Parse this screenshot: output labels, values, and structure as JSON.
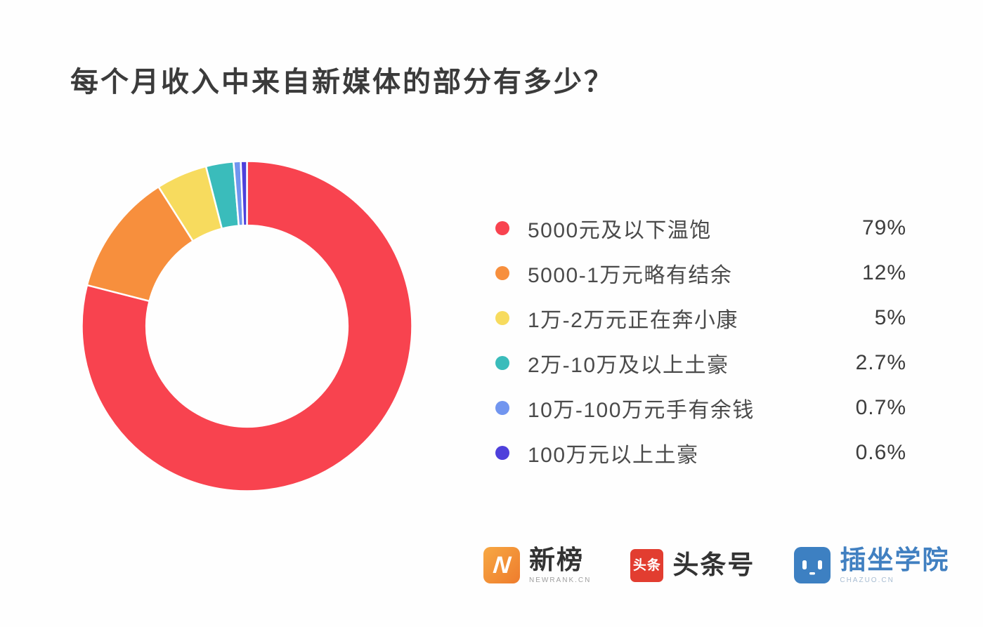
{
  "title": "每个月收入中来自新媒体的部分有多少？",
  "chart_data": {
    "type": "pie",
    "donut": true,
    "title": "每个月收入中来自新媒体的部分有多少？",
    "labels": [
      "5000元及以下温饱",
      "5000-1万元略有结余",
      "1万-2万元正在奔小康",
      "2万-10万及以上土豪",
      "10万-100万元手有余钱",
      "100万元以上土豪"
    ],
    "values": [
      79,
      12,
      5,
      2.7,
      0.7,
      0.6
    ],
    "display_values": [
      "79%",
      "12%",
      "5%",
      "2.7%",
      "0.7%",
      "0.6%"
    ],
    "colors": [
      "#f8434f",
      "#f78f3d",
      "#f7db5e",
      "#3abcbb",
      "#7195ef",
      "#4e40db"
    ],
    "start_angle_deg": 0,
    "direction": "clockwise",
    "inner_radius_ratio": 0.61,
    "slice_gap_color": "#ffffff",
    "legend_position": "right"
  },
  "footer": {
    "logos": [
      {
        "name": "新榜",
        "badge_letter": "N",
        "brand": "#f08c2e",
        "subtext": "NEWRANK.CN"
      },
      {
        "name": "头条号",
        "badge_text": "头条",
        "brand": "#e23d30"
      },
      {
        "name": "插坐学院",
        "brand": "#3d80c2",
        "subtext": "CHAZUO.CN"
      }
    ]
  },
  "palette": {
    "background": "#fefefe",
    "title_text": "#3b3b3b",
    "legend_text": "#4a4a4a",
    "value_text": "#3d3d3d"
  }
}
